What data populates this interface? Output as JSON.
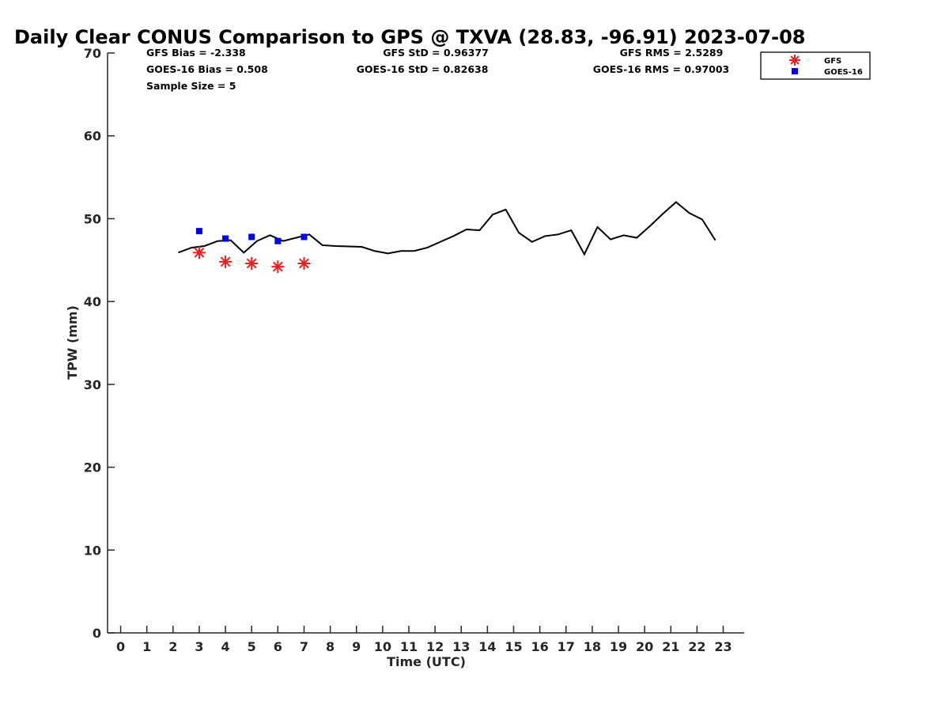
{
  "chart_data": {
    "type": "scatter",
    "title": "Daily Clear CONUS Comparison to GPS @ TXVA (28.83, -96.91) 2023-07-08",
    "xlabel": "Time (UTC)",
    "ylabel": "TPW (mm)",
    "xlim": [
      -0.5,
      23.8
    ],
    "ylim": [
      0,
      70
    ],
    "xticks": [
      "0",
      "1",
      "2",
      "3",
      "4",
      "5",
      "6",
      "7",
      "8",
      "9",
      "10",
      "11",
      "12",
      "13",
      "14",
      "15",
      "16",
      "17",
      "18",
      "19",
      "20",
      "21",
      "22",
      "23"
    ],
    "yticks": [
      "0",
      "10",
      "20",
      "30",
      "40",
      "50",
      "60",
      "70"
    ],
    "grid": false,
    "legend_position": "top-right",
    "gps_line": {
      "x": [
        2.2,
        2.7,
        3.2,
        3.7,
        4.2,
        4.7,
        5.2,
        5.7,
        6.2,
        6.7,
        7.2,
        7.7,
        8.2,
        9.2,
        9.7,
        10.2,
        10.7,
        11.2,
        11.7,
        12.2,
        12.7,
        13.2,
        13.7,
        14.2,
        14.7,
        15.2,
        15.7,
        16.2,
        16.7,
        17.2,
        17.7,
        18.2,
        18.7,
        19.2,
        19.7,
        20.2,
        20.7,
        21.2,
        21.7,
        22.2,
        22.7
      ],
      "y": [
        45.9,
        46.5,
        46.7,
        47.3,
        47.4,
        45.9,
        47.3,
        48.0,
        47.3,
        47.7,
        48.1,
        46.8,
        46.7,
        46.6,
        46.1,
        45.8,
        46.1,
        46.1,
        46.5,
        47.2,
        47.9,
        48.7,
        48.6,
        50.5,
        51.1,
        48.3,
        47.2,
        47.9,
        48.1,
        48.6,
        45.7,
        49.0,
        47.5,
        48.0,
        47.7,
        49.1,
        50.6,
        52.0,
        50.7,
        49.9,
        47.4
      ]
    },
    "series": [
      {
        "name": "GFS",
        "marker": "asterisk",
        "color": "#ee1c1c",
        "x": [
          3.0,
          4.0,
          5.0,
          6.0,
          7.0
        ],
        "y": [
          45.9,
          44.8,
          44.6,
          44.2,
          44.6
        ]
      },
      {
        "name": "GOES-16",
        "marker": "square",
        "color": "#0000ee",
        "x": [
          3.0,
          4.0,
          5.0,
          6.0,
          7.0
        ],
        "y": [
          48.5,
          47.6,
          47.8,
          47.3,
          47.8
        ]
      }
    ],
    "stats": {
      "gfs_bias": "GFS Bias = -2.338",
      "goes_bias": "GOES-16 Bias = 0.508",
      "sample_size": "Sample Size = 5",
      "gfs_std": "GFS StD = 0.96377",
      "goes_std": "GOES-16 StD = 0.82638",
      "gfs_rms": "GFS RMS = 2.5289",
      "goes_rms": "GOES-16 RMS = 0.97003"
    }
  }
}
